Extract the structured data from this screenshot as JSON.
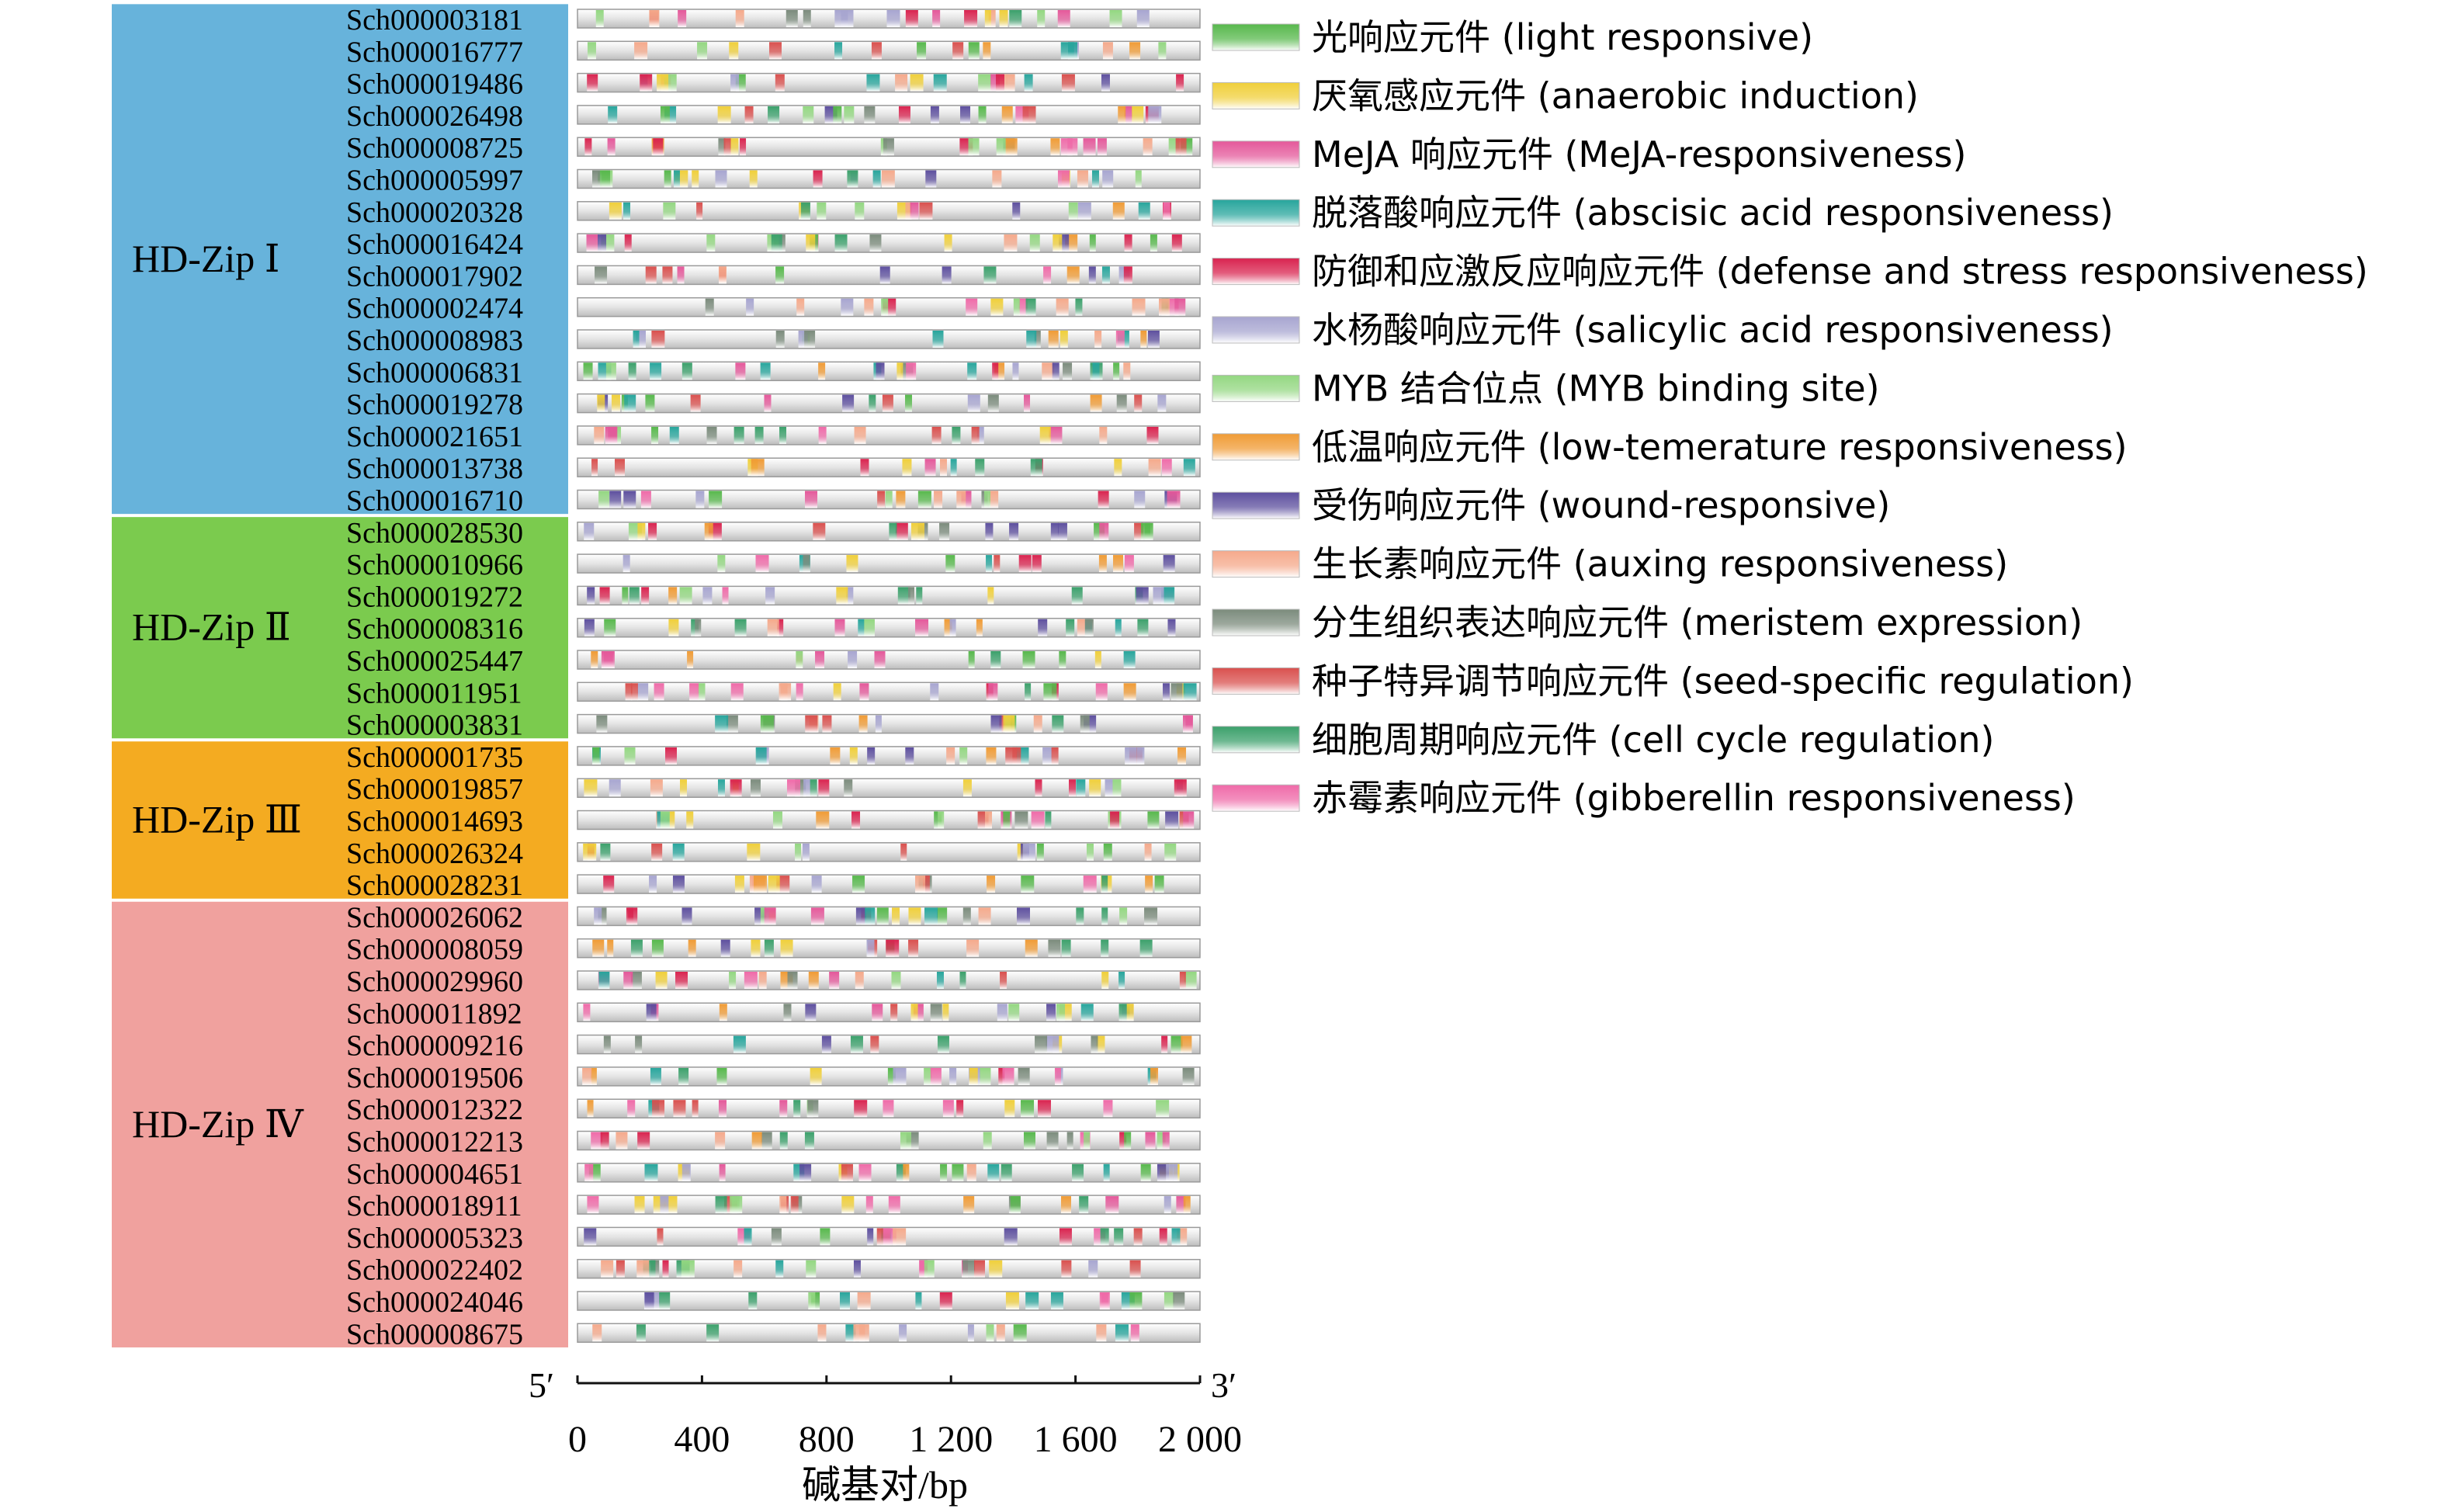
{
  "groups": [
    {
      "name": "HD-Zip Ⅰ",
      "color": "#67b3db",
      "genes": [
        "Sch000003181",
        "Sch000016777",
        "Sch000019486",
        "Sch000026498",
        "Sch000008725",
        "Sch000005997",
        "Sch000020328",
        "Sch000016424",
        "Sch000017902",
        "Sch000002474",
        "Sch000008983",
        "Sch000006831",
        "Sch000019278",
        "Sch000021651",
        "Sch000013738",
        "Sch000016710"
      ]
    },
    {
      "name": "HD-Zip Ⅱ",
      "color": "#7bcb4e",
      "genes": [
        "Sch000028530",
        "Sch000010966",
        "Sch000019272",
        "Sch000008316",
        "Sch000025447",
        "Sch000011951",
        "Sch000003831"
      ]
    },
    {
      "name": "HD-Zip Ⅲ",
      "color": "#f4ab21",
      "genes": [
        "Sch000001735",
        "Sch000019857",
        "Sch000014693",
        "Sch000026324",
        "Sch000028231"
      ]
    },
    {
      "name": "HD-Zip Ⅳ",
      "color": "#f0a19e",
      "genes": [
        "Sch000026062",
        "Sch000008059",
        "Sch000029960",
        "Sch000011892",
        "Sch000009216",
        "Sch000019506",
        "Sch000012322",
        "Sch000012213",
        "Sch000004651",
        "Sch000018911",
        "Sch000005323",
        "Sch000022402",
        "Sch000024046",
        "Sch000008675"
      ]
    }
  ],
  "elements": [
    {
      "label": "光响应元件 (light responsive)",
      "color": "#57b84c"
    },
    {
      "label": "厌氧感应元件 (anaerobic induction)",
      "color": "#f0cf3a"
    },
    {
      "label": "MeJA 响应元件 (MeJA-responsiveness)",
      "color": "#e4589a"
    },
    {
      "label": "脱落酸响应元件 (abscisic acid responsiveness)",
      "color": "#27a59c"
    },
    {
      "label": "防御和应激反应响应元件 (defense and stress responsiveness)",
      "color": "#d9234f"
    },
    {
      "label": "水杨酸响应元件 (salicylic acid responsiveness)",
      "color": "#a7a5d0"
    },
    {
      "label": "MYB 结合位点 (MYB binding site)",
      "color": "#93d781"
    },
    {
      "label": "低温响应元件 (low-temerature responsiveness)",
      "color": "#f09b35"
    },
    {
      "label": "受伤响应元件 (wound-responsive)",
      "color": "#5d4f9e"
    },
    {
      "label": "生长素响应元件 (auxing responsiveness)",
      "color": "#f5a98b"
    },
    {
      "label": "分生组织表达响应元件 (meristem expression)",
      "color": "#7b8b7c"
    },
    {
      "label": "种子特异调节响应元件 (seed-specific regulation)",
      "color": "#d9504e"
    },
    {
      "label": "细胞周期响应元件 (cell cycle regulation)",
      "color": "#3ba06b"
    },
    {
      "label": "赤霉素响应元件 (gibberellin responsiveness)",
      "color": "#ef6aa8"
    }
  ],
  "axis": {
    "five_prime": "5′",
    "three_prime": "3′",
    "ticks": [
      "0",
      "400",
      "800",
      "1 200",
      "1 600",
      "2 000"
    ],
    "tick_values": [
      0,
      400,
      800,
      1200,
      1600,
      2000
    ],
    "max": 2000,
    "label": "碱基对/bp"
  }
}
